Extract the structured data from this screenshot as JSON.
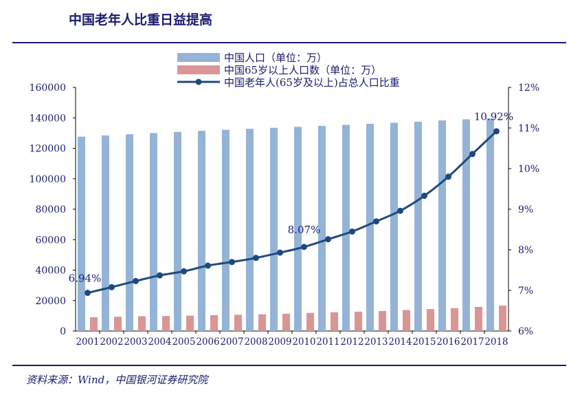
{
  "page": {
    "title": "中国老年人比重日益提高",
    "source": "资料来源：Wind，中国银河证券研究院"
  },
  "colors": {
    "population_bar": "#95b3d7",
    "elderly_bar": "#d99694",
    "ratio_line": "#1f497d",
    "accent": "#1a1a6e"
  },
  "chart_data": {
    "type": "bar+line",
    "categories": [
      "2001",
      "2002",
      "2003",
      "2004",
      "2005",
      "2006",
      "2007",
      "2008",
      "2009",
      "2010",
      "2011",
      "2012",
      "2013",
      "2014",
      "2015",
      "2016",
      "2017",
      "2018"
    ],
    "series": [
      {
        "name": "中国人口（单位：万）",
        "type": "bar",
        "axis": "left",
        "values": [
          127627,
          128453,
          129227,
          129988,
          130756,
          131448,
          132129,
          132802,
          133450,
          134091,
          134735,
          135404,
          136072,
          136782,
          137462,
          138271,
          139008,
          139538
        ]
      },
      {
        "name": "中国65岁以上人口数（单位：万）",
        "type": "bar",
        "axis": "left",
        "values": [
          9062,
          9377,
          9692,
          9857,
          10055,
          10419,
          10636,
          10956,
          11307,
          11894,
          12288,
          12714,
          13161,
          13755,
          14386,
          15003,
          15831,
          16658
        ]
      },
      {
        "name": "中国老年人(65岁及以上)占总人口比重",
        "type": "line",
        "axis": "right",
        "values": [
          6.94,
          7.08,
          7.23,
          7.37,
          7.47,
          7.61,
          7.7,
          7.8,
          7.93,
          8.07,
          8.26,
          8.45,
          8.7,
          8.96,
          9.33,
          9.8,
          10.36,
          10.92
        ]
      }
    ],
    "left_axis": {
      "min": 0,
      "max": 160000,
      "ticks": [
        "0",
        "20000",
        "40000",
        "60000",
        "80000",
        "100000",
        "120000",
        "140000",
        "160000"
      ]
    },
    "right_axis": {
      "min": 6,
      "max": 12,
      "ticks": [
        "6%",
        "7%",
        "8%",
        "9%",
        "10%",
        "11%",
        "12%"
      ]
    },
    "annotations": [
      {
        "index": 0,
        "text": "6.94%"
      },
      {
        "index": 9,
        "text": "8.07%"
      },
      {
        "index": 17,
        "text": "10.92%"
      }
    ],
    "legend_position": "top-center"
  }
}
